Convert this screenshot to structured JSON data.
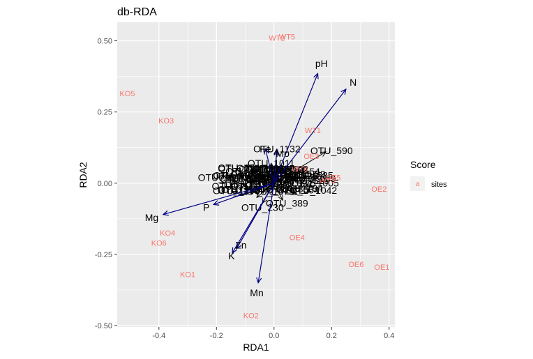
{
  "chart_data": {
    "type": "scatter",
    "title": "db-RDA",
    "xlabel": "RDA1",
    "ylabel": "RDA2",
    "xlim": [
      -0.545,
      0.42
    ],
    "ylim": [
      -0.505,
      0.565
    ],
    "x_ticks": [
      -0.4,
      -0.2,
      0.0,
      0.2,
      0.4
    ],
    "x_tick_labels": [
      "-0.4",
      "-0.2",
      "0.0",
      "0.2",
      "0.4"
    ],
    "y_ticks": [
      -0.5,
      -0.25,
      0.0,
      0.25,
      0.5
    ],
    "y_tick_labels": [
      "-0.50",
      "-0.25",
      "0.00",
      "0.25",
      "0.50"
    ],
    "grid": true,
    "legend": {
      "title": "Score",
      "key_glyph": "a",
      "entries": [
        "sites"
      ],
      "placement": "right"
    },
    "colors": {
      "sites": "#F8766D",
      "env_arrows": "#000080",
      "species_arrows": "#000000",
      "panel": "#EBEBEB",
      "grid": "#FFFFFF"
    },
    "sites": [
      {
        "label": "WT2",
        "x": 0.01,
        "y": 0.51
      },
      {
        "label": "WT5",
        "x": 0.045,
        "y": 0.515
      },
      {
        "label": "KO5",
        "x": -0.51,
        "y": 0.315
      },
      {
        "label": "KO3",
        "x": -0.375,
        "y": 0.22
      },
      {
        "label": "WT1",
        "x": 0.135,
        "y": 0.185
      },
      {
        "label": "OE3",
        "x": 0.13,
        "y": 0.095
      },
      {
        "label": "WT6",
        "x": 0.09,
        "y": 0.05
      },
      {
        "label": "OE5",
        "x": 0.205,
        "y": 0.02
      },
      {
        "label": "WT3",
        "x": 0.185,
        "y": 0.01
      },
      {
        "label": "OE2",
        "x": 0.365,
        "y": -0.02
      },
      {
        "label": "KO4",
        "x": -0.37,
        "y": -0.175
      },
      {
        "label": "KO6",
        "x": -0.4,
        "y": -0.21
      },
      {
        "label": "OE4",
        "x": 0.08,
        "y": -0.19
      },
      {
        "label": "OE6",
        "x": 0.285,
        "y": -0.285
      },
      {
        "label": "OE1",
        "x": 0.375,
        "y": -0.295
      },
      {
        "label": "KO1",
        "x": -0.3,
        "y": -0.32
      },
      {
        "label": "KO2",
        "x": -0.08,
        "y": -0.465
      }
    ],
    "env_vectors": [
      {
        "label": "pH",
        "x": 0.152,
        "y": 0.385,
        "lx": 0.165,
        "ly": 0.42
      },
      {
        "label": "N",
        "x": 0.25,
        "y": 0.33,
        "lx": 0.275,
        "ly": 0.355
      },
      {
        "label": "Mg",
        "x": -0.385,
        "y": -0.11,
        "lx": -0.425,
        "ly": -0.12
      },
      {
        "label": "P",
        "x": -0.21,
        "y": -0.075,
        "lx": -0.235,
        "ly": -0.085
      },
      {
        "label": "Zn",
        "x": -0.13,
        "y": -0.23,
        "lx": -0.115,
        "ly": -0.217
      },
      {
        "label": "K",
        "x": -0.145,
        "y": -0.245,
        "lx": -0.148,
        "ly": -0.255
      },
      {
        "label": "Mn",
        "x": -0.055,
        "y": -0.35,
        "lx": -0.06,
        "ly": -0.385
      },
      {
        "label": "Fe",
        "x": -0.03,
        "y": 0.12,
        "lx": -0.03,
        "ly": 0.12
      },
      {
        "label": "Mo",
        "x": 0.01,
        "y": 0.115,
        "lx": 0.03,
        "ly": 0.105
      }
    ],
    "species_labels": [
      {
        "label": "OTU_1132",
        "x": 0.01,
        "y": 0.12
      },
      {
        "label": "OTU_590",
        "x": 0.2,
        "y": 0.115
      },
      {
        "label": "OTU_1011",
        "x": -0.01,
        "y": 0.07
      },
      {
        "label": "OTU_1",
        "x": -0.21,
        "y": 0.02
      },
      {
        "label": "OTU_389",
        "x": 0.045,
        "y": -0.07
      },
      {
        "label": "OTU_230",
        "x": -0.04,
        "y": -0.085
      }
    ],
    "species_vectors": [
      {
        "x": 0.18,
        "y": 0.11
      },
      {
        "x": 0.01,
        "y": 0.12
      },
      {
        "x": -0.01,
        "y": 0.07
      },
      {
        "x": -0.16,
        "y": 0.02
      },
      {
        "x": 0.03,
        "y": -0.06
      },
      {
        "x": -0.04,
        "y": -0.07
      },
      {
        "x": -0.08,
        "y": 0.04
      },
      {
        "x": 0.08,
        "y": -0.04
      },
      {
        "x": -0.06,
        "y": -0.05
      },
      {
        "x": 0.06,
        "y": 0.05
      }
    ]
  }
}
